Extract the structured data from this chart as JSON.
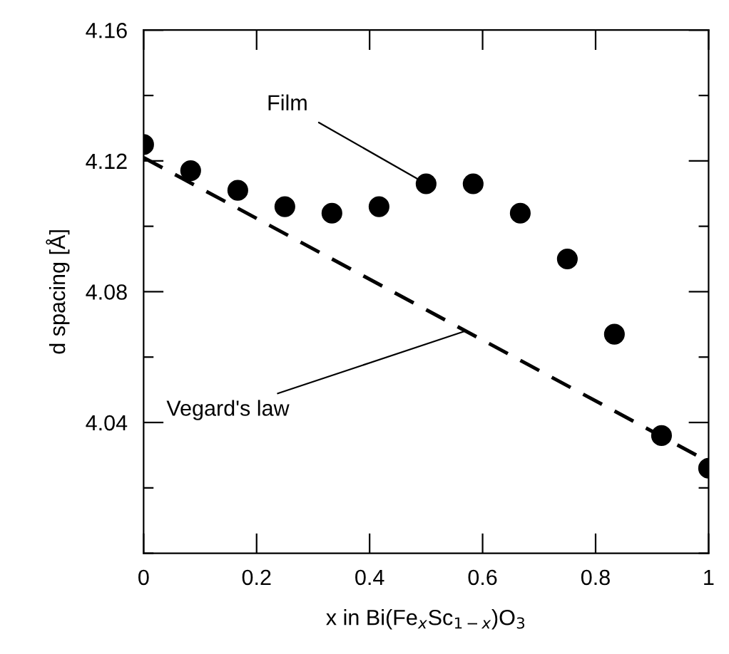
{
  "chart_data": {
    "type": "scatter",
    "xlabel": "x in Bi(Fe$_{x}$Sc$_{1−x}$)O$_{3}$",
    "ylabel": "d spacing [Å]",
    "x": [
      0,
      0.0833,
      0.1667,
      0.25,
      0.3333,
      0.4167,
      0.5,
      0.5833,
      0.6667,
      0.75,
      0.8333,
      0.9167,
      1
    ],
    "series": [
      {
        "name": null,
        "color": "#000000",
        "marker": "circle",
        "values": [
          4.125,
          4.117,
          4.111,
          4.106,
          4.104,
          4.106,
          4.113,
          4.113,
          4.104,
          4.09,
          4.067,
          4.036,
          4.026
        ]
      },
      {
        "type": "line",
        "color": "#000000",
        "line_style": "dashed",
        "marker": "none",
        "x": [
          0,
          1
        ],
        "values": [
          4.121,
          4.028
        ]
      }
    ],
    "annotations": [
      {
        "text": "Film",
        "x": 0.5,
        "y": 4.113
      },
      {
        "text": "Vegard's law",
        "x": 0.57,
        "y": 4.068
      }
    ],
    "xlim": [
      0,
      1
    ],
    "ylim": [
      4.0,
      4.16
    ],
    "xticks": [
      {
        "value": 0,
        "label": "0"
      },
      0.2,
      0.4,
      0.6,
      0.8,
      {
        "value": 1,
        "label": "1"
      }
    ],
    "yticks": [
      {
        "value": 4.0,
        "label": null
      },
      {
        "value": 4.02,
        "label": null
      },
      4.04,
      {
        "value": 4.06,
        "label": null
      },
      4.08,
      {
        "value": 4.1,
        "label": null
      },
      4.12,
      {
        "value": 4.14,
        "label": null
      },
      4.16
    ],
    "grid": false
  }
}
